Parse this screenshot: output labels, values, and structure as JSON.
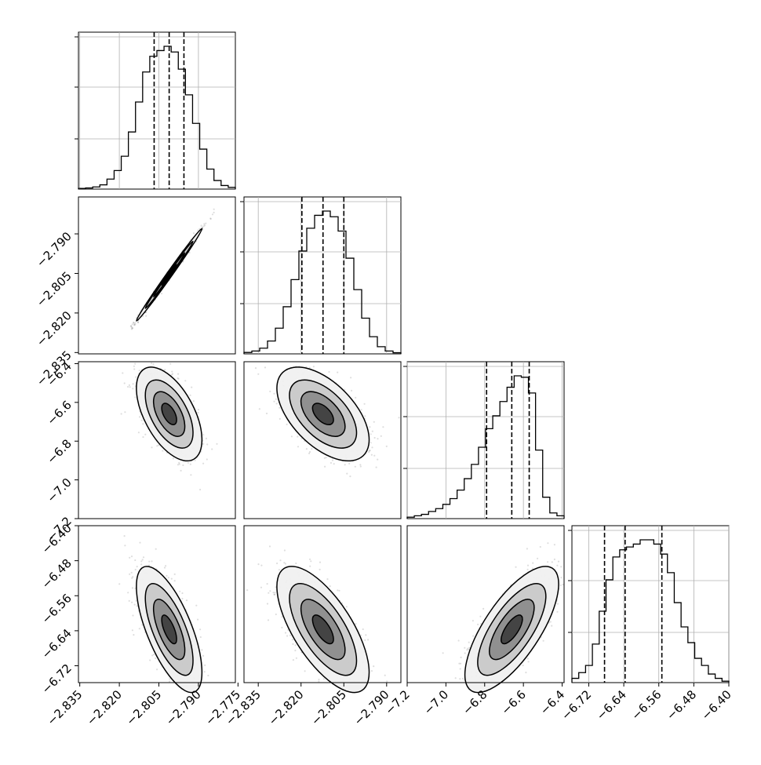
{
  "chart_data": {
    "type": "corner",
    "params": [
      {
        "ticks": [
          "−2.835",
          "−2.820",
          "−2.805",
          "−2.790",
          "−2.775"
        ],
        "tick_values": [
          -2.835,
          -2.82,
          -2.805,
          -2.79,
          -2.775
        ],
        "range": [
          -2.8355,
          -2.776
        ],
        "quantiles": [
          -2.8068,
          -2.8011,
          -2.7955
        ],
        "hist": [
          0.005,
          0.008,
          0.015,
          0.03,
          0.07,
          0.13,
          0.23,
          0.4,
          0.61,
          0.82,
          0.93,
          0.97,
          1.0,
          0.96,
          0.84,
          0.66,
          0.46,
          0.28,
          0.14,
          0.06,
          0.025,
          0.012
        ]
      },
      {
        "ticks": [
          "−2.835",
          "−2.820",
          "−2.805",
          "−2.790"
        ],
        "tick_values": [
          -2.835,
          -2.82,
          -2.805,
          -2.79
        ],
        "range": [
          -2.84,
          -2.785
        ],
        "quantiles": [
          -2.8197,
          -2.8123,
          -2.805
        ],
        "hist": [
          0.01,
          0.02,
          0.04,
          0.09,
          0.18,
          0.33,
          0.52,
          0.72,
          0.88,
          0.97,
          1.0,
          0.96,
          0.86,
          0.67,
          0.45,
          0.25,
          0.12,
          0.05,
          0.02,
          0.008
        ]
      },
      {
        "ticks": [
          "−7.2",
          "−7.0",
          "−6.8",
          "−6.6",
          "−6.4"
        ],
        "tick_values": [
          -7.2,
          -7.0,
          -6.8,
          -6.6,
          -6.4
        ],
        "range": [
          -7.2,
          -6.39
        ],
        "quantiles": [
          -6.79,
          -6.66,
          -6.57
        ],
        "hist": [
          0.01,
          0.02,
          0.03,
          0.05,
          0.07,
          0.1,
          0.14,
          0.2,
          0.28,
          0.38,
          0.5,
          0.63,
          0.72,
          0.82,
          0.92,
          1.0,
          0.99,
          0.88,
          0.48,
          0.15,
          0.04,
          0.02
        ]
      },
      {
        "ticks": [
          "−6.72",
          "−6.64",
          "−6.56",
          "−6.48",
          "−6.40"
        ],
        "tick_values": [
          -6.72,
          -6.64,
          -6.56,
          -6.48,
          -6.4
        ],
        "range": [
          -6.7585,
          -6.4
        ],
        "quantiles": [
          -6.684,
          -6.637,
          -6.553
        ],
        "hist": [
          0.03,
          0.07,
          0.12,
          0.27,
          0.5,
          0.72,
          0.88,
          0.93,
          0.95,
          0.97,
          1.0,
          1.0,
          0.97,
          0.9,
          0.77,
          0.56,
          0.39,
          0.28,
          0.17,
          0.12,
          0.06,
          0.03,
          0.01
        ]
      }
    ],
    "pairs": [
      {
        "row": 1,
        "col": 0,
        "rho": 0.995
      },
      {
        "row": 2,
        "col": 0,
        "rho": -0.55
      },
      {
        "row": 2,
        "col": 1,
        "rho": -0.55
      },
      {
        "row": 3,
        "col": 0,
        "rho": -0.68
      },
      {
        "row": 3,
        "col": 1,
        "rho": -0.68
      },
      {
        "row": 3,
        "col": 2,
        "rho": 0.72
      }
    ],
    "y_ticks": {
      "row1": [
        "−2.790",
        "−2.805",
        "−2.820",
        "−2.835"
      ],
      "row2": [
        "−6.4",
        "−6.6",
        "−6.8",
        "−7.0",
        "−7.2"
      ],
      "row3": [
        "−6.40",
        "−6.48",
        "−6.56",
        "−6.64",
        "−6.72"
      ]
    },
    "grid": true,
    "quantile_lines": "dashed",
    "contour_levels": 4
  }
}
